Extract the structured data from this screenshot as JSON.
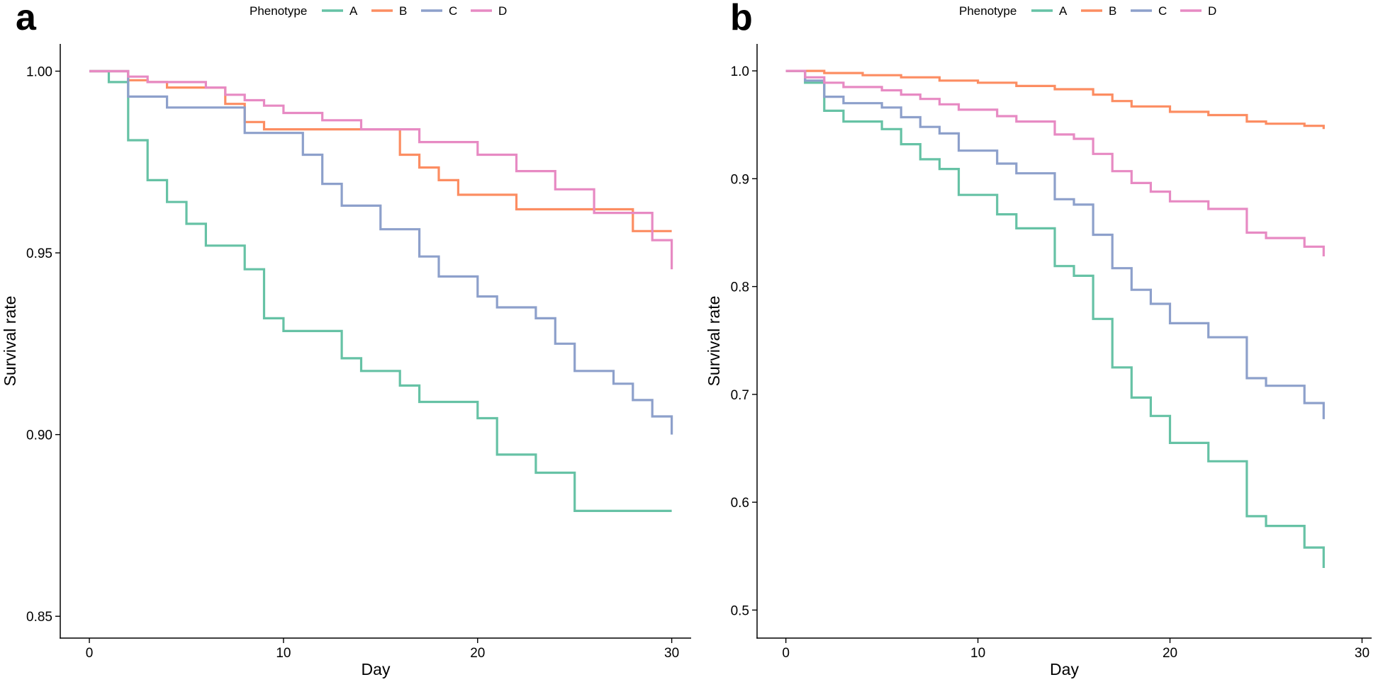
{
  "chart_data": [
    {
      "type": "line",
      "step": true,
      "panel_label": "a",
      "legend_title": "Phenotype",
      "legend_position": "top",
      "xlabel": "Day",
      "ylabel": "Survival rate",
      "xlim": [
        -1.5,
        31.0
      ],
      "ylim": [
        0.844,
        1.0075
      ],
      "xticks": [
        0,
        10,
        20,
        30
      ],
      "xtick_labels": [
        "0",
        "10",
        "20",
        "30"
      ],
      "yticks": [
        0.85,
        0.9,
        0.95,
        1.0
      ],
      "ytick_labels": [
        "0.85",
        "0.90",
        "0.95",
        "1.00"
      ],
      "grid": false,
      "series": [
        {
          "name": "A",
          "color": "#66C2A5",
          "x": [
            0,
            1,
            2,
            3,
            4,
            5,
            6,
            8,
            9,
            10,
            13,
            14,
            16,
            17,
            20,
            21,
            23,
            25,
            30
          ],
          "y": [
            1.0,
            0.997,
            0.981,
            0.97,
            0.964,
            0.958,
            0.952,
            0.9455,
            0.932,
            0.9285,
            0.921,
            0.9175,
            0.9135,
            0.909,
            0.9045,
            0.8945,
            0.8895,
            0.879,
            0.879
          ]
        },
        {
          "name": "B",
          "color": "#FC8D62",
          "x": [
            0,
            2,
            3,
            4,
            7,
            8,
            9,
            16,
            17,
            18,
            19,
            22,
            28,
            30
          ],
          "y": [
            1.0,
            0.9975,
            0.997,
            0.9955,
            0.991,
            0.986,
            0.984,
            0.977,
            0.9735,
            0.97,
            0.966,
            0.962,
            0.956,
            0.956
          ]
        },
        {
          "name": "C",
          "color": "#8DA0CB",
          "x": [
            0,
            2,
            4,
            8,
            11,
            12,
            13,
            15,
            17,
            18,
            20,
            21,
            23,
            24,
            25,
            27,
            28,
            29,
            30
          ],
          "y": [
            1.0,
            0.993,
            0.99,
            0.983,
            0.977,
            0.969,
            0.963,
            0.9565,
            0.949,
            0.9435,
            0.938,
            0.935,
            0.932,
            0.925,
            0.9175,
            0.914,
            0.9095,
            0.905,
            0.9
          ]
        },
        {
          "name": "D",
          "color": "#E78AC3",
          "x": [
            0,
            2,
            3,
            6,
            7,
            8,
            9,
            10,
            12,
            14,
            17,
            20,
            22,
            24,
            26,
            29,
            30
          ],
          "y": [
            1.0,
            0.9985,
            0.997,
            0.9955,
            0.9935,
            0.992,
            0.9905,
            0.9885,
            0.9865,
            0.984,
            0.9805,
            0.977,
            0.9725,
            0.9675,
            0.961,
            0.9535,
            0.9455
          ]
        }
      ]
    },
    {
      "type": "line",
      "step": true,
      "panel_label": "b",
      "legend_title": "Phenotype",
      "legend_position": "top",
      "xlabel": "Day",
      "ylabel": "Survival rate",
      "xlim": [
        -1.5,
        30.5
      ],
      "ylim": [
        0.474,
        1.025
      ],
      "xticks": [
        0,
        10,
        20,
        30
      ],
      "xtick_labels": [
        "0",
        "10",
        "20",
        "30"
      ],
      "yticks": [
        0.5,
        0.6,
        0.7,
        0.8,
        0.9,
        1.0
      ],
      "ytick_labels": [
        "0.5",
        "0.6",
        "0.7",
        "0.8",
        "0.9",
        "1.0"
      ],
      "grid": false,
      "series": [
        {
          "name": "A",
          "color": "#66C2A5",
          "x": [
            0,
            1,
            2,
            3,
            5,
            6,
            7,
            8,
            9,
            11,
            12,
            14,
            15,
            16,
            17,
            18,
            19,
            20,
            22,
            24,
            25,
            27,
            28
          ],
          "y": [
            1.0,
            0.989,
            0.963,
            0.953,
            0.946,
            0.932,
            0.918,
            0.909,
            0.885,
            0.867,
            0.854,
            0.819,
            0.81,
            0.77,
            0.725,
            0.697,
            0.68,
            0.655,
            0.638,
            0.587,
            0.578,
            0.558,
            0.539
          ]
        },
        {
          "name": "B",
          "color": "#FC8D62",
          "x": [
            0,
            2,
            4,
            6,
            8,
            10,
            12,
            14,
            16,
            17,
            18,
            20,
            22,
            24,
            25,
            27,
            28
          ],
          "y": [
            1.0,
            0.998,
            0.996,
            0.994,
            0.991,
            0.989,
            0.986,
            0.983,
            0.978,
            0.972,
            0.967,
            0.962,
            0.959,
            0.953,
            0.951,
            0.949,
            0.946
          ]
        },
        {
          "name": "C",
          "color": "#8DA0CB",
          "x": [
            0,
            1,
            2,
            3,
            4,
            5,
            6,
            7,
            8,
            9,
            11,
            12,
            14,
            15,
            16,
            17,
            18,
            19,
            20,
            22,
            24,
            25,
            27,
            28
          ],
          "y": [
            1.0,
            0.991,
            0.976,
            0.97,
            0.97,
            0.966,
            0.957,
            0.948,
            0.942,
            0.926,
            0.914,
            0.905,
            0.881,
            0.876,
            0.848,
            0.817,
            0.797,
            0.784,
            0.766,
            0.753,
            0.715,
            0.708,
            0.692,
            0.677
          ]
        },
        {
          "name": "D",
          "color": "#E78AC3",
          "x": [
            0,
            1,
            2,
            3,
            5,
            6,
            7,
            8,
            9,
            11,
            12,
            14,
            15,
            16,
            17,
            18,
            19,
            20,
            22,
            24,
            25,
            27,
            28
          ],
          "y": [
            1.0,
            0.994,
            0.989,
            0.985,
            0.982,
            0.978,
            0.974,
            0.969,
            0.964,
            0.958,
            0.953,
            0.941,
            0.937,
            0.923,
            0.907,
            0.896,
            0.888,
            0.879,
            0.872,
            0.85,
            0.845,
            0.837,
            0.828
          ]
        }
      ]
    }
  ]
}
